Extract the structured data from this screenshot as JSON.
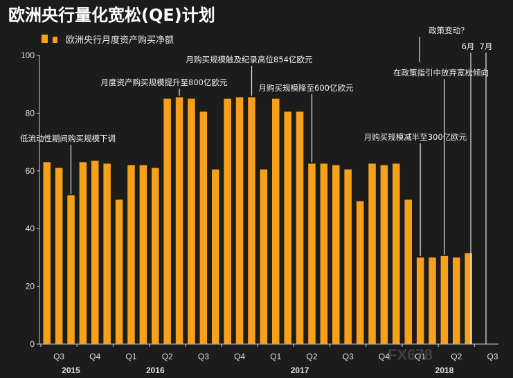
{
  "chart_data": {
    "type": "bar",
    "title": "欧洲央行量化宽松(QE)计划",
    "legend": [
      "欧洲央行月度资产购买净额"
    ],
    "legend_position": "top-left",
    "colors": {
      "bar": "#f7a11a",
      "background": "#1c1c1c",
      "text": "#e0e0e0"
    },
    "ylim": [
      0,
      100
    ],
    "yticks": [
      "0",
      "20",
      "40",
      "60",
      "80",
      "100"
    ],
    "values": [
      63,
      61,
      51.5,
      63,
      63.5,
      62.5,
      50,
      62,
      62,
      61,
      85,
      85.5,
      85,
      80.5,
      60.5,
      85,
      85.5,
      85.5,
      60.5,
      85,
      80.5,
      80.5,
      62.5,
      62.5,
      62,
      60.5,
      49.5,
      62.5,
      62,
      62.5,
      50,
      30,
      30,
      30.5,
      30,
      31.5
    ],
    "quarter_labels": [
      "Q3",
      "Q4",
      "Q1",
      "Q2",
      "Q3",
      "Q4",
      "Q1",
      "Q2",
      "Q3",
      "Q4",
      "Q1",
      "Q2",
      "Q3"
    ],
    "year_labels": [
      "2015",
      "2016",
      "2017",
      "2018"
    ],
    "annotations": [
      "低流动性期间购买规模下调",
      "月度资产购买规模提升至800亿欧元",
      "月购买规模触及纪录高位854亿欧元",
      "月购买规模降至600亿欧元",
      "月购买规模减半至300亿欧元",
      "在政策指引中放弃宽松倾向",
      "政策变动？",
      "6月",
      "7月"
    ],
    "watermark": "FX678"
  }
}
